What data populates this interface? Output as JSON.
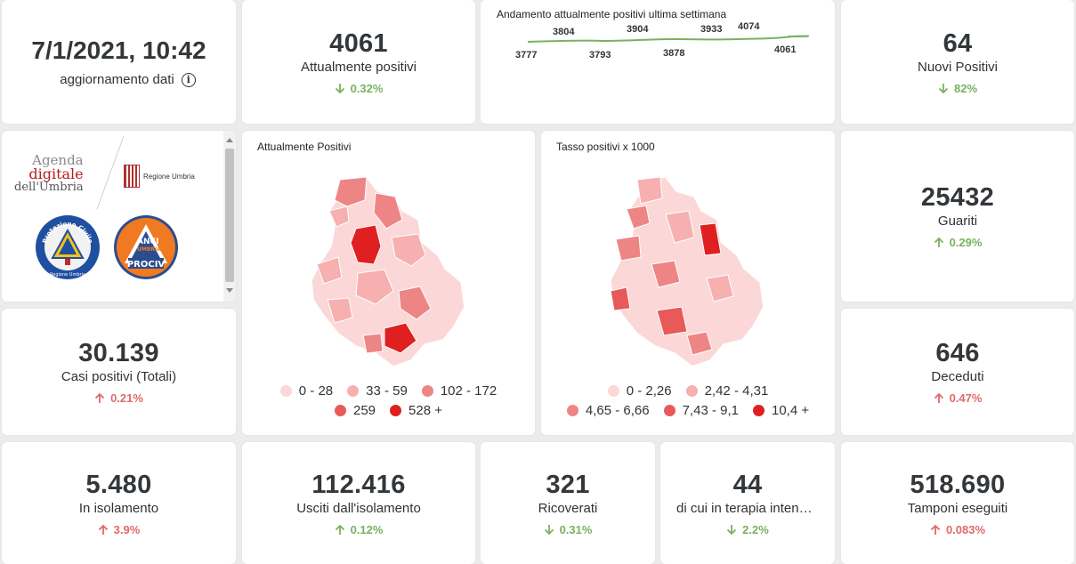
{
  "update": {
    "datetime": "7/1/2021, 10:42",
    "label": "aggiornamento dati"
  },
  "kpis": {
    "positivi": {
      "value": "4061",
      "label": "Attualmente positivi",
      "delta": "0.32%",
      "direction": "down",
      "color": "#78b25e"
    },
    "nuovi": {
      "value": "64",
      "label": "Nuovi Positivi",
      "delta": "82%",
      "direction": "down",
      "color": "#78b25e"
    },
    "guariti": {
      "value": "25432",
      "label": "Guariti",
      "delta": "0.29%",
      "direction": "up",
      "color": "#78b25e"
    },
    "deceduti": {
      "value": "646",
      "label": "Deceduti",
      "delta": "0.47%",
      "direction": "up",
      "color": "#e06a6a"
    },
    "casi": {
      "value": "30.139",
      "label": "Casi positivi (Totali)",
      "delta": "0.21%",
      "direction": "up",
      "color": "#e06a6a"
    },
    "isolamento": {
      "value": "5.480",
      "label": "In isolamento",
      "delta": "3.9%",
      "direction": "up",
      "color": "#e06a6a"
    },
    "usciti": {
      "value": "112.416",
      "label": "Usciti dall'isolamento",
      "delta": "0.12%",
      "direction": "up",
      "color": "#78b25e"
    },
    "ricoverati": {
      "value": "321",
      "label": "Ricoverati",
      "delta": "0.31%",
      "direction": "down",
      "color": "#78b25e"
    },
    "terapia": {
      "value": "44",
      "label": "di cui in terapia intensiva",
      "delta": "2.2%",
      "direction": "down",
      "color": "#78b25e"
    },
    "tamponi": {
      "value": "518.690",
      "label": "Tamponi eseguiti",
      "delta": "0.083%",
      "direction": "up",
      "color": "#e06a6a"
    }
  },
  "trend": {
    "title": "Andamento attualmente positivi ultima settimana",
    "labels": [
      "3777",
      "3804",
      "3793",
      "3904",
      "3878",
      "3933",
      "4074",
      "4061"
    ],
    "line_color": "#78b25e"
  },
  "logos": {
    "agenda_line1": "Agenda",
    "agenda_line2": "digitale",
    "agenda_line3": "dell'Umbria",
    "regione": "Regione Umbria",
    "protezione": "Protezione Civile",
    "protezione_sub": "Regione Umbria",
    "anci_line1": "ANCI",
    "anci_line2": "UMBRIA",
    "anci_line3": "PROCIV"
  },
  "map_positivi": {
    "title": "Attualmente Positivi",
    "legend": [
      {
        "label": "0 - 28",
        "color": "#fbd7d7"
      },
      {
        "label": "33 - 59",
        "color": "#f6b0b0"
      },
      {
        "label": "102 - 172",
        "color": "#ee8585"
      },
      {
        "label": "259",
        "color": "#e85a5a"
      },
      {
        "label": "528 +",
        "color": "#e02020"
      }
    ]
  },
  "map_tasso": {
    "title": "Tasso positivi x 1000",
    "legend": [
      {
        "label": "0 - 2,26",
        "color": "#fbd7d7"
      },
      {
        "label": "2,42 - 4,31",
        "color": "#f6b0b0"
      },
      {
        "label": "4,65 - 6,66",
        "color": "#ee8585"
      },
      {
        "label": "7,43 - 9,1",
        "color": "#e85a5a"
      },
      {
        "label": "10,4 +",
        "color": "#e02020"
      }
    ]
  }
}
